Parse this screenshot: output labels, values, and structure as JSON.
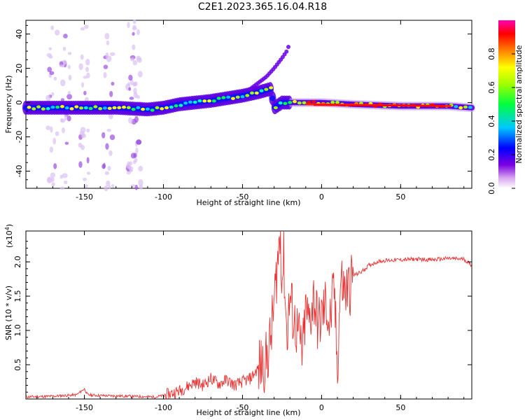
{
  "title": "C2E1.2023.365.16.04.R18",
  "chart_data": [
    {
      "type": "heatmap",
      "name": "spectrogram",
      "xlabel": "Height of straight line (km)",
      "ylabel": "Frequency (Hz)",
      "xlim": [
        -187,
        95
      ],
      "ylim": [
        -50,
        48
      ],
      "xticks": [
        -150,
        -100,
        -50,
        0,
        50
      ],
      "yticks": [
        -40,
        -20,
        0,
        20,
        40
      ],
      "colorbar": {
        "label": "Normalized spectral amplitude",
        "range": [
          0.0,
          1.0
        ],
        "ticks": [
          0.0,
          0.2,
          0.4,
          0.6,
          0.8
        ]
      },
      "ridge": {
        "description": "dominant frequency track",
        "height_km": [
          -187,
          -160,
          -130,
          -110,
          -100,
          -90,
          -70,
          -50,
          -40,
          -32,
          -30,
          -25,
          -20,
          -10,
          0,
          20,
          50,
          80,
          95
        ],
        "freq_hz": [
          -3,
          -3,
          -3,
          -4,
          -3,
          -1,
          1,
          4,
          6,
          8,
          -3,
          0,
          0,
          0,
          0,
          -1,
          -2,
          -2,
          -3
        ]
      },
      "branch": {
        "height_km": [
          -45,
          -35,
          -30,
          -25,
          -22,
          -20
        ],
        "freq_hz": [
          8,
          15,
          20,
          26,
          30,
          35
        ]
      }
    },
    {
      "type": "line",
      "name": "snr",
      "xlabel": "Height of straight line (km)",
      "ylabel": "SNR (10 * v/v)",
      "scale_label": "(x10",
      "scale_exp": "4",
      "scale_suffix": ")",
      "color": "#e83232",
      "xlim": [
        -187,
        95
      ],
      "ylim": [
        0.0,
        2.45
      ],
      "xticks": [
        -150,
        -100,
        -50,
        0,
        50
      ],
      "yticks": [
        0.5,
        1.0,
        1.5,
        2.0
      ],
      "ytick_labels": [
        "0.5",
        "1.0",
        "1.5",
        "2.0"
      ],
      "x": [
        -187,
        -170,
        -155,
        -150,
        -148,
        -140,
        -120,
        -105,
        -100,
        -95,
        -90,
        -85,
        -80,
        -75,
        -70,
        -65,
        -60,
        -55,
        -50,
        -45,
        -40,
        -35,
        -32,
        -30,
        -28,
        -26,
        -25,
        -24,
        -22,
        -20,
        -18,
        -15,
        -12,
        -10,
        -8,
        -5,
        -2,
        0,
        3,
        5,
        8,
        10,
        12,
        15,
        18,
        20,
        25,
        30,
        35,
        40,
        50,
        60,
        70,
        80,
        90,
        95
      ],
      "y": [
        0.03,
        0.04,
        0.06,
        0.15,
        0.06,
        0.05,
        0.04,
        0.03,
        0.05,
        0.08,
        0.12,
        0.18,
        0.25,
        0.2,
        0.3,
        0.22,
        0.28,
        0.2,
        0.25,
        0.3,
        0.45,
        0.55,
        0.9,
        1.4,
        1.95,
        2.45,
        1.7,
        2.1,
        0.9,
        1.5,
        1.2,
        0.95,
        0.65,
        1.3,
        1.1,
        1.5,
        1.05,
        1.2,
        1.4,
        1.05,
        1.6,
        0.42,
        1.75,
        1.55,
        1.65,
        1.8,
        1.85,
        1.95,
        2.0,
        2.02,
        2.03,
        2.04,
        2.03,
        2.05,
        2.04,
        1.95
      ]
    }
  ]
}
